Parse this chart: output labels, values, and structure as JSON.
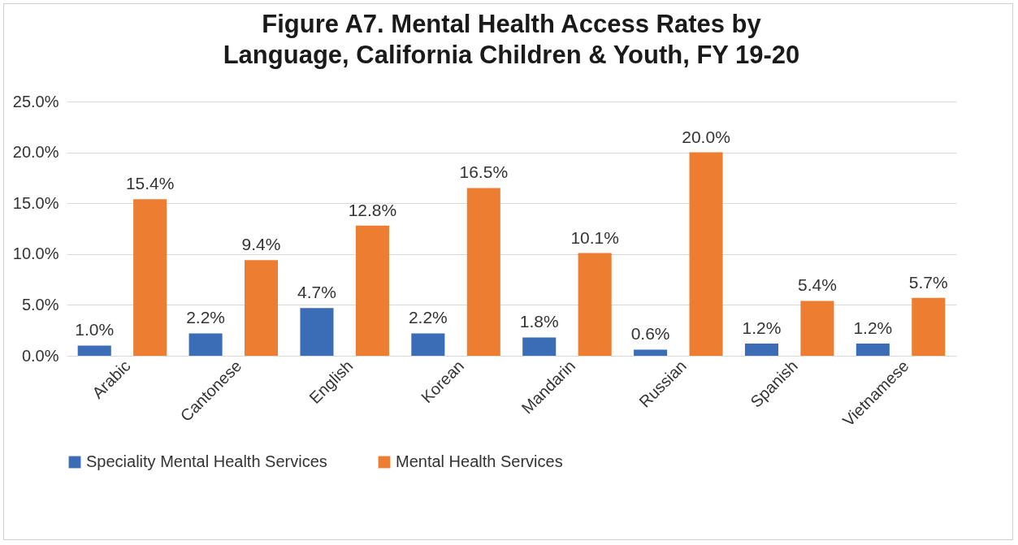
{
  "chart_data": {
    "type": "bar",
    "title": "Figure A7. Mental Health Access Rates by Language, California Children & Youth, FY 19-20",
    "categories": [
      "Arabic",
      "Cantonese",
      "English",
      "Korean",
      "Mandarin",
      "Russian",
      "Spanish",
      "Vietnamese"
    ],
    "series": [
      {
        "name": "Speciality Mental Health Services",
        "color": "#3a6db5",
        "values": [
          1.0,
          2.2,
          4.7,
          2.2,
          1.8,
          0.6,
          1.2,
          1.2
        ],
        "value_labels": [
          "1.0%",
          "2.2%",
          "4.7%",
          "2.2%",
          "1.8%",
          "0.6%",
          "1.2%",
          "1.2%"
        ]
      },
      {
        "name": "Mental Health Services",
        "color": "#ed7d31",
        "values": [
          15.4,
          9.4,
          12.8,
          16.5,
          10.1,
          20.0,
          5.4,
          5.7
        ],
        "value_labels": [
          "15.4%",
          "9.4%",
          "12.8%",
          "16.5%",
          "10.1%",
          "20.0%",
          "5.4%",
          "5.7%"
        ]
      }
    ],
    "ylim": [
      0,
      25
    ],
    "yticks": [
      {
        "value": 0,
        "label": "0.0%"
      },
      {
        "value": 5,
        "label": "5.0%"
      },
      {
        "value": 10,
        "label": "10.0%"
      },
      {
        "value": 15,
        "label": "15.0%"
      },
      {
        "value": 20,
        "label": "20.0%"
      },
      {
        "value": 25,
        "label": "25.0%"
      }
    ],
    "grid": "y",
    "legend": "bottom"
  }
}
